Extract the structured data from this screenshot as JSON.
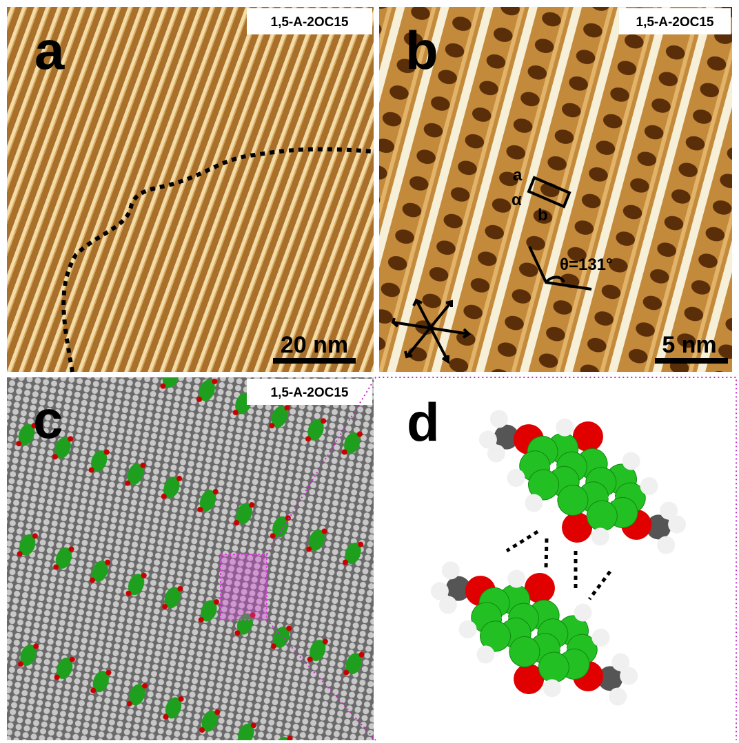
{
  "panels": [
    {
      "letter": "a",
      "label": "1,5-A-2OC15",
      "scale_bar": "20 nm"
    },
    {
      "letter": "b",
      "label": "1,5-A-2OC15",
      "scale_bar": "5 nm",
      "annotations": {
        "cell_a": "a",
        "alpha": "α",
        "cell_b": "b",
        "theta": "θ=131°"
      }
    },
    {
      "letter": "c",
      "label": "1,5-A-2OC15"
    },
    {
      "letter": "d"
    }
  ]
}
